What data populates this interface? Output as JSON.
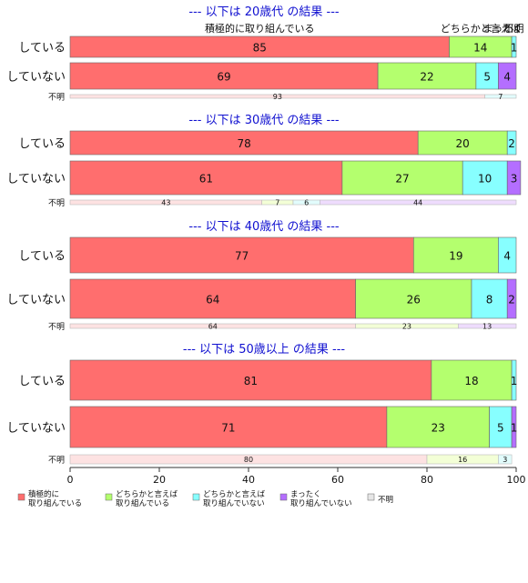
{
  "chart_data": {
    "type": "bar",
    "orientation": "horizontal",
    "stacked": true,
    "xlim": [
      0,
      100
    ],
    "x_ticks": [
      0,
      20,
      40,
      60,
      80,
      100
    ],
    "colors": {
      "series": [
        "#ff6e6e",
        "#b4ff6e",
        "#87ffff",
        "#b46eff",
        "#e6e6e6"
      ],
      "unknown_fill": [
        "#fde2e2",
        "#f3ffd6",
        "#e2fcfc",
        "#eedcfd",
        "#f0f0f0"
      ],
      "section_title": "#1010d0",
      "bar_border": "#666666"
    },
    "legend": {
      "placement": "bottom",
      "entries": [
        {
          "lines": [
            "積極的に",
            "取り組んでいる"
          ]
        },
        {
          "lines": [
            "どちらかと言えば",
            "取り組んでいる"
          ]
        },
        {
          "lines": [
            "どちらかと言えば",
            "取り組んでいない"
          ]
        },
        {
          "lines": [
            "まったく",
            "取り組んでいない"
          ]
        },
        {
          "lines": [
            "不明"
          ]
        }
      ]
    },
    "column_header_labels": [
      "積極的に取り組んでいる",
      "どちらかと言えば",
      "まったく",
      "不明"
    ],
    "sections": [
      {
        "title": "--- 以下は 20歳代 の結果 ---",
        "rows": [
          {
            "label": "している",
            "values": [
              85,
              14,
              1,
              0,
              0
            ]
          },
          {
            "label": "していない",
            "values": [
              69,
              22,
              5,
              4,
              0
            ]
          },
          {
            "label": "不明",
            "values": [
              93,
              0,
              7,
              0,
              0
            ]
          }
        ]
      },
      {
        "title": "--- 以下は 30歳代 の結果 ---",
        "rows": [
          {
            "label": "している",
            "values": [
              78,
              20,
              2,
              0,
              0
            ]
          },
          {
            "label": "していない",
            "values": [
              61,
              27,
              10,
              3,
              0
            ]
          },
          {
            "label": "不明",
            "values": [
              43,
              7,
              6,
              44,
              0
            ]
          }
        ]
      },
      {
        "title": "--- 以下は 40歳代 の結果 ---",
        "rows": [
          {
            "label": "している",
            "values": [
              77,
              19,
              4,
              0,
              0
            ]
          },
          {
            "label": "していない",
            "values": [
              64,
              26,
              8,
              2,
              0
            ]
          },
          {
            "label": "不明",
            "values": [
              64,
              23,
              0,
              13,
              0
            ]
          }
        ]
      },
      {
        "title": "--- 以下は 50歳以上 の結果 ---",
        "rows": [
          {
            "label": "している",
            "values": [
              81,
              18,
              1,
              0,
              0
            ]
          },
          {
            "label": "していない",
            "values": [
              71,
              23,
              5,
              1,
              0
            ]
          },
          {
            "label": "不明",
            "values": [
              80,
              16,
              3,
              0,
              0
            ]
          }
        ]
      }
    ]
  }
}
